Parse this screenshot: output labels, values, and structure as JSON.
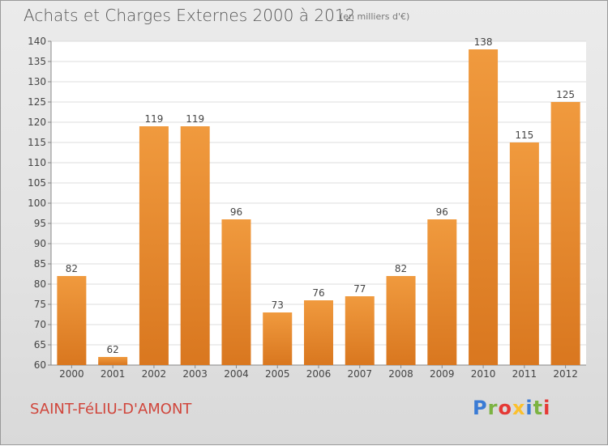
{
  "page": {
    "title": "Achats et Charges Externes 2000 à 2012",
    "subtitle": "(en milliers d'€)",
    "commune": "SAINT-FéLIU-D'AMONT",
    "logo": "Proxiti"
  },
  "colors": {
    "bar": "#f09a3e",
    "bar_dark": "#d9771f",
    "commune": "#d0463c",
    "logo_letters": [
      "#3a7bd5",
      "#7cb342",
      "#e53935",
      "#fbc02d",
      "#3a7bd5",
      "#7cb342",
      "#e53935"
    ]
  },
  "chart_data": {
    "type": "bar",
    "title": "Achats et Charges Externes 2000 à 2012",
    "subtitle": "(en milliers d'€)",
    "categories": [
      "2000",
      "2001",
      "2002",
      "2003",
      "2004",
      "2005",
      "2006",
      "2007",
      "2008",
      "2009",
      "2010",
      "2011",
      "2012"
    ],
    "values": [
      82,
      62,
      119,
      119,
      96,
      73,
      76,
      77,
      82,
      96,
      138,
      115,
      125
    ],
    "ylim": [
      60,
      140
    ],
    "yticks": [
      60,
      65,
      70,
      75,
      80,
      85,
      90,
      95,
      100,
      105,
      110,
      115,
      120,
      125,
      130,
      135,
      140
    ],
    "grid": true,
    "xlabel": "",
    "ylabel": ""
  }
}
